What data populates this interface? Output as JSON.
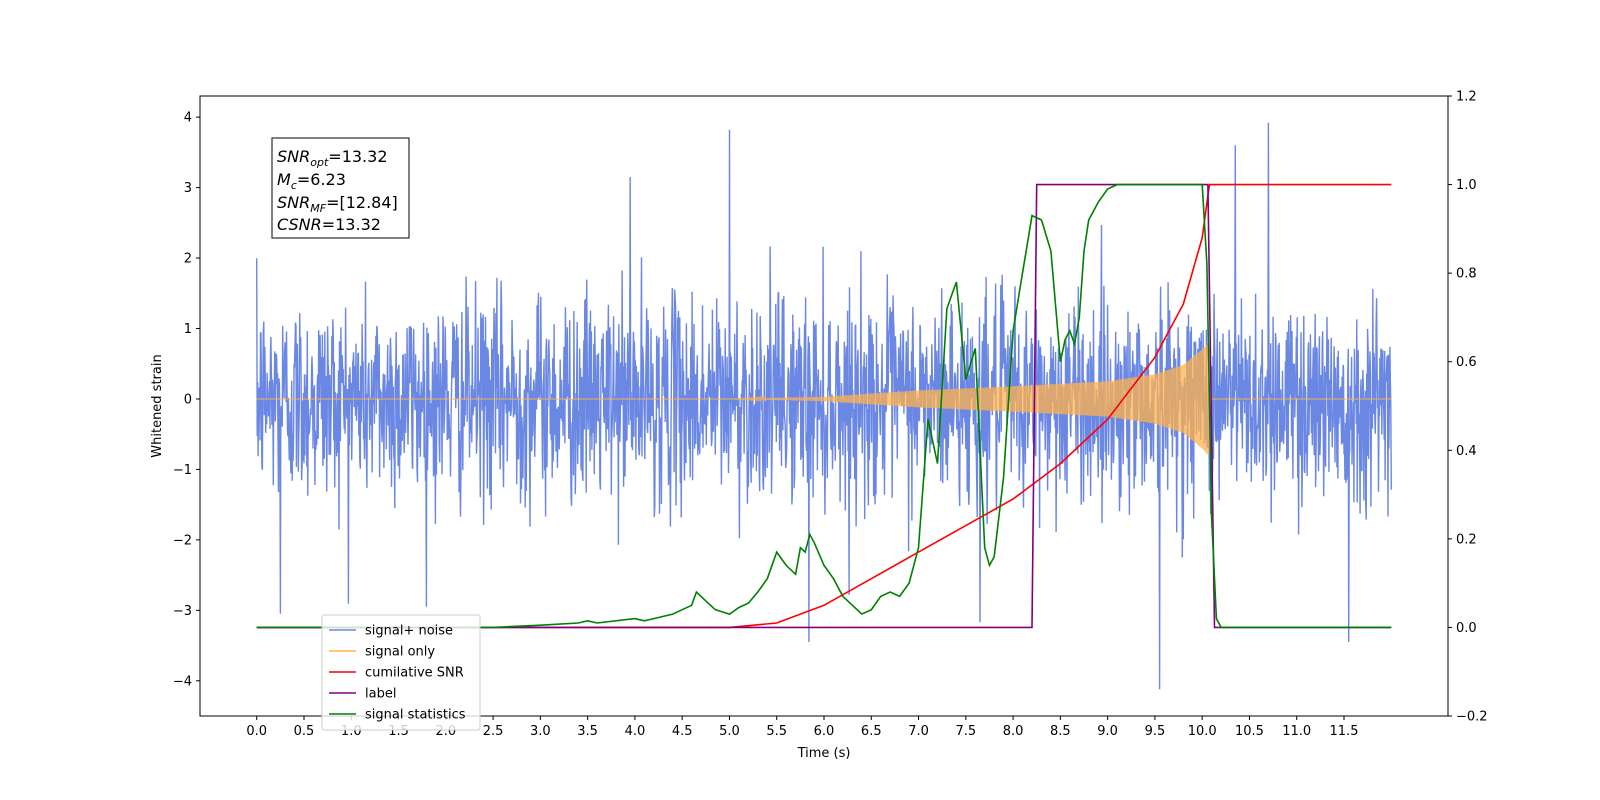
{
  "chart_data": {
    "type": "line",
    "xlabel": "Time (s)",
    "ylabel": "Whitened strain",
    "xlim": [
      -0.6,
      12.6
    ],
    "ylim_left": [
      -4.5,
      4.3
    ],
    "ylim_right": [
      -0.2,
      1.2
    ],
    "x_ticks": [
      "0.0",
      "0.5",
      "1.0",
      "1.5",
      "2.0",
      "2.5",
      "3.0",
      "3.5",
      "4.0",
      "4.5",
      "5.0",
      "5.5",
      "6.0",
      "6.5",
      "7.0",
      "7.5",
      "8.0",
      "8.5",
      "9.0",
      "9.5",
      "10.0",
      "10.5",
      "11.0",
      "11.5"
    ],
    "y_ticks_left": [
      "−4",
      "−3",
      "−2",
      "−1",
      "0",
      "1",
      "2",
      "3",
      "4"
    ],
    "y_ticks_right": [
      "−0.2",
      "0.0",
      "0.2",
      "0.4",
      "0.6",
      "0.8",
      "1.0",
      "1.2"
    ],
    "annotation": {
      "line1_main": "SNR",
      "line1_sub": "opt",
      "line1_rest": "=13.32",
      "line2_main": "M",
      "line2_sub": "c",
      "line2_rest": "=6.23",
      "line3_main": "SNR",
      "line3_sub": "MF",
      "line3_rest": "=[12.84]",
      "line4_main": "CSNR",
      "line4_rest": "=13.32"
    },
    "legend": [
      {
        "name": "signal+ noise",
        "color": "#6b87e4"
      },
      {
        "name": "signal only",
        "color": "#ffb24d"
      },
      {
        "name": "cumilative SNR",
        "color": "#ff0000"
      },
      {
        "name": "label",
        "color": "#800080"
      },
      {
        "name": "signal statistics",
        "color": "#008000"
      }
    ],
    "series": [
      {
        "name": "signal+ noise",
        "axis": "left",
        "color": "#6b87e4",
        "envelope": {
          "x_start": 0.0,
          "x_end": 12.0,
          "typical_low": -1.7,
          "typical_high": 1.8
        },
        "spikes": [
          {
            "x": 5.0,
            "y": 3.82
          },
          {
            "x": 10.7,
            "y": 3.92
          },
          {
            "x": 10.35,
            "y": 3.6
          },
          {
            "x": 9.55,
            "y": -4.12
          },
          {
            "x": 5.84,
            "y": -3.45
          },
          {
            "x": 11.55,
            "y": -3.45
          },
          {
            "x": 0.25,
            "y": -3.05
          },
          {
            "x": 3.95,
            "y": 3.15
          },
          {
            "x": 7.65,
            "y": -3.17
          }
        ]
      },
      {
        "name": "signal only",
        "axis": "left",
        "color": "#ffb24d",
        "amplitude_envelope": {
          "x": [
            0.0,
            5.0,
            6.0,
            7.0,
            8.0,
            9.0,
            9.5,
            9.8,
            10.0,
            10.07,
            10.1,
            12.0
          ],
          "amp": [
            0.0,
            0.0,
            0.03,
            0.12,
            0.18,
            0.25,
            0.35,
            0.48,
            0.7,
            0.8,
            0.0,
            0.0
          ]
        }
      },
      {
        "name": "cumilative SNR",
        "axis": "right",
        "color": "#ff0000",
        "x": [
          0.0,
          5.0,
          5.5,
          6.0,
          6.5,
          7.0,
          7.5,
          8.0,
          8.5,
          9.0,
          9.5,
          9.8,
          10.0,
          10.07,
          10.08,
          12.0
        ],
        "y": [
          0.0,
          0.0,
          0.01,
          0.05,
          0.11,
          0.17,
          0.23,
          0.29,
          0.37,
          0.47,
          0.61,
          0.73,
          0.88,
          0.99,
          1.0,
          1.0
        ]
      },
      {
        "name": "label",
        "axis": "right",
        "color": "#800080",
        "x": [
          0.0,
          8.2,
          8.25,
          10.06,
          10.13,
          12.0
        ],
        "y": [
          0.0,
          0.0,
          1.0,
          1.0,
          0.0,
          0.0
        ]
      },
      {
        "name": "signal statistics",
        "axis": "right",
        "color": "#008000",
        "x": [
          0.0,
          2.5,
          3.0,
          3.4,
          3.5,
          3.6,
          4.0,
          4.1,
          4.2,
          4.4,
          4.5,
          4.6,
          4.65,
          4.75,
          4.85,
          5.0,
          5.1,
          5.2,
          5.3,
          5.4,
          5.5,
          5.6,
          5.7,
          5.75,
          5.8,
          5.85,
          5.9,
          6.0,
          6.1,
          6.2,
          6.3,
          6.4,
          6.5,
          6.6,
          6.7,
          6.8,
          6.9,
          7.0,
          7.1,
          7.2,
          7.3,
          7.35,
          7.4,
          7.5,
          7.6,
          7.7,
          7.75,
          7.8,
          7.9,
          8.0,
          8.1,
          8.2,
          8.3,
          8.4,
          8.5,
          8.55,
          8.6,
          8.65,
          8.7,
          8.75,
          8.8,
          8.85,
          8.9,
          9.0,
          9.1,
          9.2,
          9.5,
          9.8,
          10.0,
          10.05,
          10.1,
          10.15,
          10.2,
          10.3,
          12.0
        ],
        "y": [
          0.0,
          0.0,
          0.005,
          0.01,
          0.015,
          0.01,
          0.02,
          0.015,
          0.02,
          0.03,
          0.04,
          0.05,
          0.08,
          0.06,
          0.04,
          0.03,
          0.045,
          0.055,
          0.08,
          0.11,
          0.17,
          0.14,
          0.12,
          0.18,
          0.17,
          0.21,
          0.19,
          0.14,
          0.11,
          0.07,
          0.05,
          0.03,
          0.04,
          0.07,
          0.08,
          0.07,
          0.1,
          0.18,
          0.47,
          0.37,
          0.72,
          0.75,
          0.78,
          0.56,
          0.63,
          0.18,
          0.14,
          0.16,
          0.34,
          0.67,
          0.8,
          0.93,
          0.92,
          0.85,
          0.6,
          0.65,
          0.67,
          0.64,
          0.7,
          0.85,
          0.92,
          0.94,
          0.96,
          0.99,
          1.0,
          1.0,
          1.0,
          1.0,
          1.0,
          0.82,
          0.25,
          0.02,
          0.0,
          0.0,
          0.0
        ]
      }
    ]
  }
}
